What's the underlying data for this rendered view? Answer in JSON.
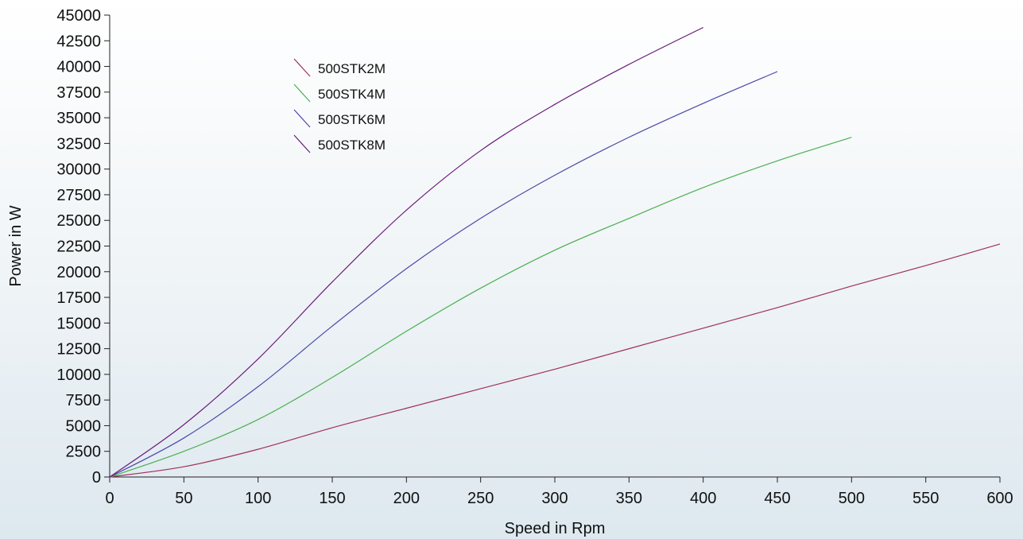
{
  "chart_data": {
    "type": "line",
    "title": "",
    "xlabel": "Speed in Rpm",
    "ylabel": "Power in W",
    "xlim": [
      0,
      600
    ],
    "ylim": [
      0,
      45000
    ],
    "x_ticks": [
      0,
      50,
      100,
      150,
      200,
      250,
      300,
      350,
      400,
      450,
      500,
      550,
      600
    ],
    "y_ticks": [
      0,
      2500,
      5000,
      7500,
      10000,
      12500,
      15000,
      17500,
      20000,
      22500,
      25000,
      27500,
      30000,
      32500,
      35000,
      37500,
      40000,
      42500,
      45000
    ],
    "grid": false,
    "legend_position": "top-left",
    "series": [
      {
        "name": "500STK2M",
        "color": "#a0305a",
        "x": [
          0,
          50,
          100,
          150,
          200,
          250,
          300,
          350,
          400,
          450,
          500,
          550,
          600
        ],
        "y": [
          0,
          1000,
          2700,
          4800,
          6700,
          8600,
          10500,
          12500,
          14500,
          16500,
          18600,
          20600,
          22700
        ]
      },
      {
        "name": "500STK4M",
        "color": "#4caf50",
        "x": [
          0,
          50,
          100,
          150,
          200,
          250,
          300,
          350,
          400,
          450,
          500
        ],
        "y": [
          0,
          2500,
          5600,
          9700,
          14200,
          18400,
          22100,
          25200,
          28200,
          30800,
          33100
        ]
      },
      {
        "name": "500STK6M",
        "color": "#4a4aa8",
        "x": [
          0,
          50,
          100,
          150,
          200,
          250,
          300,
          350,
          400,
          450
        ],
        "y": [
          0,
          3800,
          8800,
          14700,
          20300,
          25200,
          29400,
          33100,
          36400,
          39500
        ]
      },
      {
        "name": "500STK8M",
        "color": "#6a1b7a",
        "x": [
          0,
          50,
          100,
          150,
          200,
          250,
          300,
          350,
          400
        ],
        "y": [
          0,
          5100,
          11500,
          19000,
          26000,
          31800,
          36300,
          40200,
          43800
        ]
      }
    ]
  }
}
